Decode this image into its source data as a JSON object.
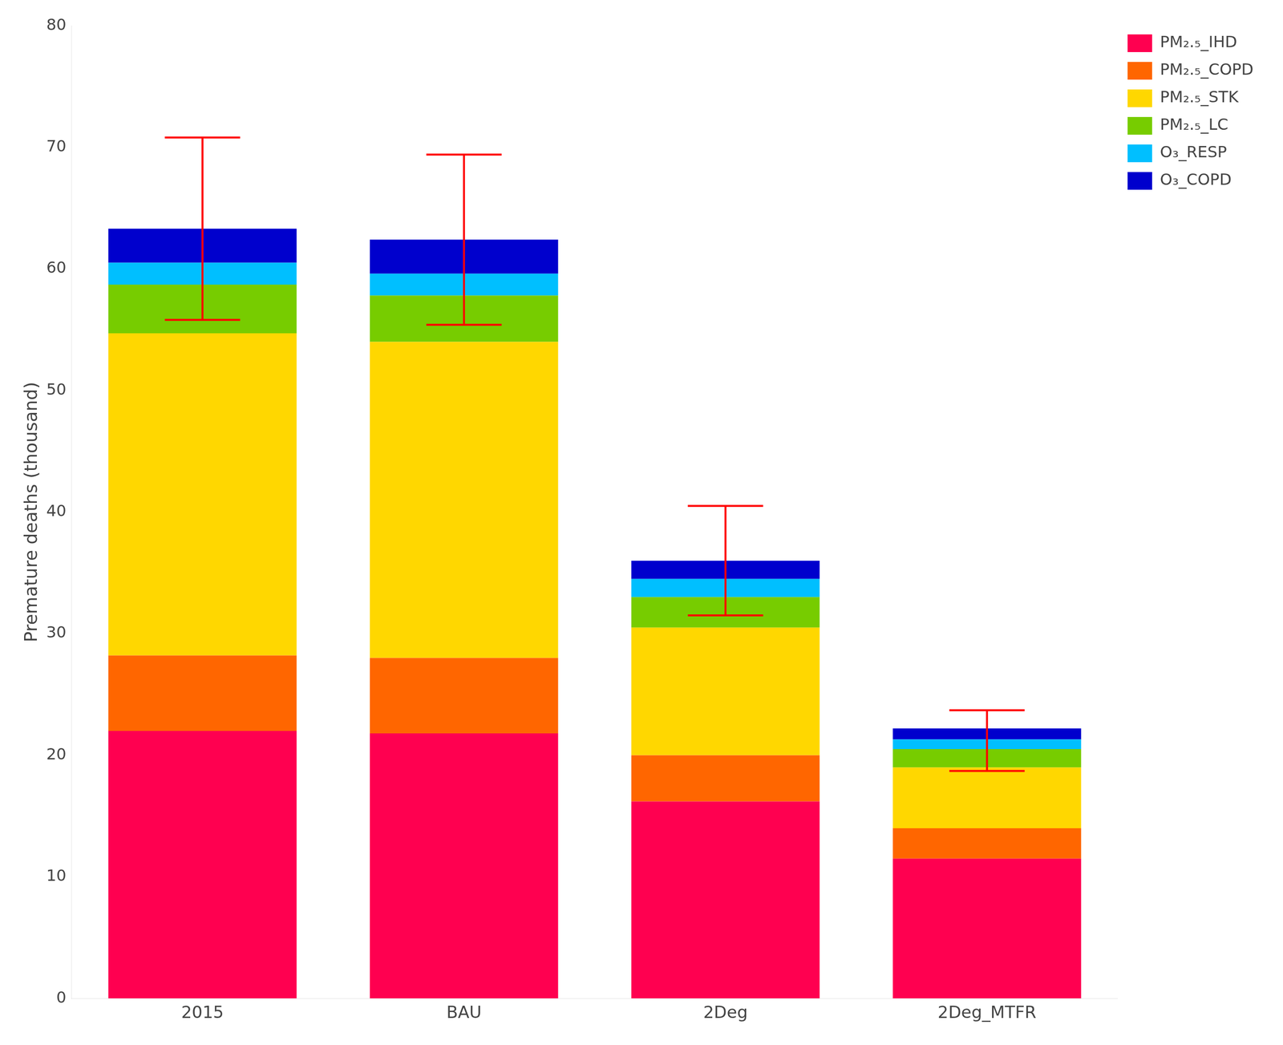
{
  "chart_data": {
    "type": "bar",
    "stacked": true,
    "categories": [
      "2015",
      "BAU",
      "2Deg",
      "2Deg_MTFR"
    ],
    "series": [
      {
        "name": "PM₂.₅_IHD",
        "color": "#FF0050",
        "values": [
          22.0,
          21.8,
          16.2,
          11.5
        ]
      },
      {
        "name": "PM₂.₅_COPD",
        "color": "#FF6600",
        "values": [
          6.2,
          6.2,
          3.8,
          2.5
        ]
      },
      {
        "name": "PM₂.₅_STK",
        "color": "#FFD700",
        "values": [
          26.5,
          26.0,
          10.5,
          5.0
        ]
      },
      {
        "name": "PM₂.₅_LC",
        "color": "#77CC00",
        "values": [
          4.0,
          3.8,
          2.5,
          1.5
        ]
      },
      {
        "name": "O₃_RESP",
        "color": "#00BFFF",
        "values": [
          1.8,
          1.8,
          1.5,
          0.8
        ]
      },
      {
        "name": "O₃_COPD",
        "color": "#0000CD",
        "values": [
          2.8,
          2.8,
          1.5,
          0.9
        ]
      }
    ],
    "error_bars": {
      "centers": [
        63.3,
        62.4,
        36.0,
        21.2
      ],
      "errors": [
        7.5,
        7.0,
        4.5,
        2.5
      ],
      "color": "red"
    },
    "y_label": "Premature deaths (thousand)",
    "ylim": [
      0,
      80
    ],
    "yticks": [
      0,
      10,
      20,
      30,
      40,
      50,
      60,
      70,
      80
    ],
    "grid": false,
    "legend": "upper right"
  }
}
